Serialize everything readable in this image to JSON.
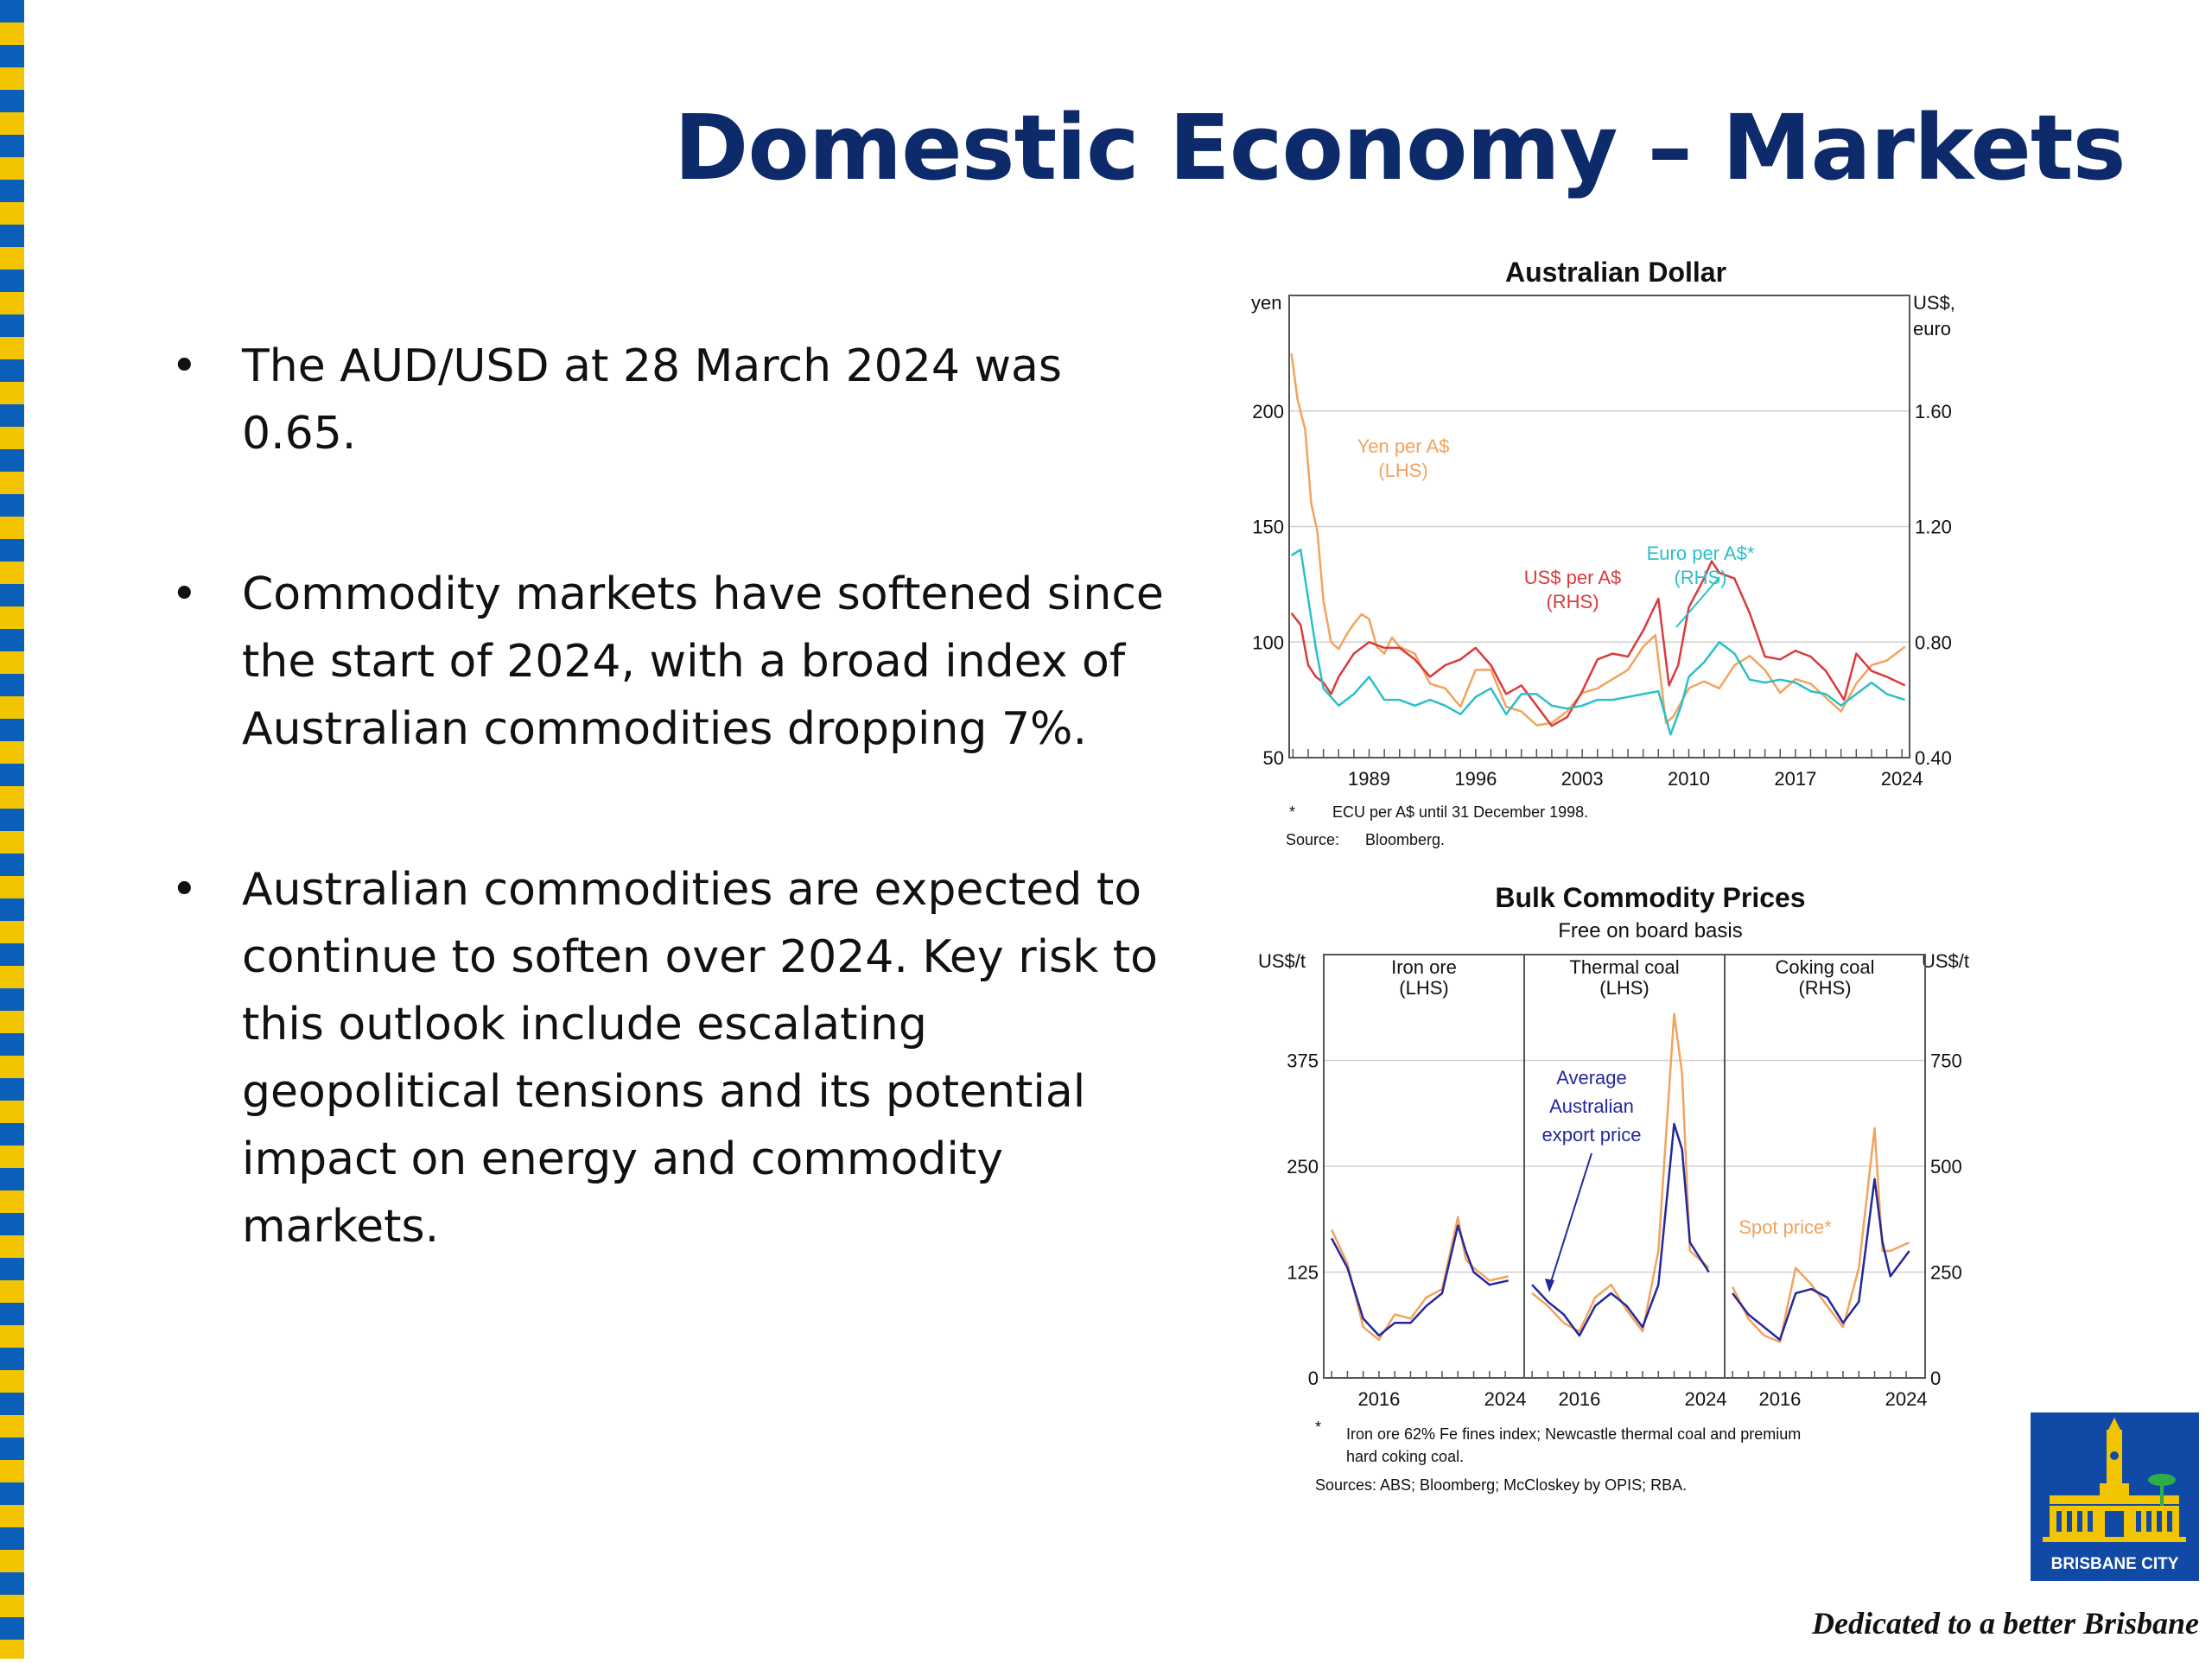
{
  "slide": {
    "title": "Domestic Economy – Markets",
    "bullets": [
      "The AUD/USD at 28 March 2024 was 0.65.",
      "Commodity markets have softened since the start of 2024, with a broad index of Australian commodities dropping 7%.",
      "Australian commodities are expected to continue to soften over 2024. Key risk to this outlook include escalating geopolitical tensions and its potential impact on energy and commodity markets."
    ],
    "logo_text": "BRISBANE CITY",
    "tagline": "Dedicated to a better Brisbane",
    "colors": {
      "title": "#0d2a6b",
      "stripe_blue": "#0b5fb8",
      "stripe_yellow": "#f2c500",
      "logo_blue": "#114aa6"
    }
  },
  "chart_data": [
    {
      "type": "line",
      "title": "Australian Dollar",
      "ylabel_left": "yen",
      "ylabel_right": "US$, euro",
      "ylim_left": [
        50,
        250
      ],
      "ylim_right": [
        0.4,
        2.0
      ],
      "left_ticks": [
        "50",
        "100",
        "150",
        "200"
      ],
      "right_ticks": [
        "0.40",
        "0.80",
        "1.20",
        "1.60"
      ],
      "x_ticks": [
        "1989",
        "1996",
        "2003",
        "2010",
        "2017",
        "2024"
      ],
      "series": [
        {
          "name": "Yen per A$",
          "axis_label": "(LHS)",
          "color": "#f2a35e",
          "points": [
            [
              1983.9,
              225
            ],
            [
              1984.3,
              205
            ],
            [
              1984.8,
              192
            ],
            [
              1985.2,
              160
            ],
            [
              1985.6,
              148
            ],
            [
              1986.0,
              118
            ],
            [
              1986.5,
              100
            ],
            [
              1987.0,
              97
            ],
            [
              1987.5,
              103
            ],
            [
              1988.0,
              108
            ],
            [
              1988.5,
              112
            ],
            [
              1989.0,
              110
            ],
            [
              1989.5,
              98
            ],
            [
              1990.0,
              95
            ],
            [
              1990.5,
              102
            ],
            [
              1991.0,
              98
            ],
            [
              1992.0,
              95
            ],
            [
              1993.0,
              82
            ],
            [
              1994.0,
              80
            ],
            [
              1995.0,
              72
            ],
            [
              1996.0,
              88
            ],
            [
              1997.0,
              88
            ],
            [
              1998.0,
              72
            ],
            [
              1999.0,
              70
            ],
            [
              2000.0,
              64
            ],
            [
              2001.0,
              65
            ],
            [
              2002.0,
              70
            ],
            [
              2003.0,
              78
            ],
            [
              2004.0,
              80
            ],
            [
              2005.0,
              84
            ],
            [
              2006.0,
              88
            ],
            [
              2007.0,
              98
            ],
            [
              2007.8,
              103
            ],
            [
              2008.5,
              65
            ],
            [
              2009.0,
              68
            ],
            [
              2010.0,
              80
            ],
            [
              2011.0,
              83
            ],
            [
              2012.0,
              80
            ],
            [
              2013.0,
              90
            ],
            [
              2014.0,
              94
            ],
            [
              2015.0,
              88
            ],
            [
              2016.0,
              78
            ],
            [
              2017.0,
              84
            ],
            [
              2018.0,
              82
            ],
            [
              2019.0,
              76
            ],
            [
              2020.0,
              70
            ],
            [
              2021.0,
              82
            ],
            [
              2022.0,
              90
            ],
            [
              2023.0,
              92
            ],
            [
              2024.2,
              98
            ]
          ]
        },
        {
          "name": "US$ per A$",
          "axis_label": "(RHS)",
          "color": "#d93b3b",
          "points": [
            [
              1983.9,
              0.9
            ],
            [
              1984.5,
              0.86
            ],
            [
              1985.0,
              0.72
            ],
            [
              1985.5,
              0.68
            ],
            [
              1986.0,
              0.66
            ],
            [
              1986.5,
              0.62
            ],
            [
              1987.0,
              0.68
            ],
            [
              1988.0,
              0.76
            ],
            [
              1989.0,
              0.8
            ],
            [
              1990.0,
              0.78
            ],
            [
              1991.0,
              0.78
            ],
            [
              1992.0,
              0.74
            ],
            [
              1993.0,
              0.68
            ],
            [
              1994.0,
              0.72
            ],
            [
              1995.0,
              0.74
            ],
            [
              1996.0,
              0.78
            ],
            [
              1997.0,
              0.72
            ],
            [
              1998.0,
              0.62
            ],
            [
              1999.0,
              0.65
            ],
            [
              2000.0,
              0.58
            ],
            [
              2001.0,
              0.51
            ],
            [
              2002.0,
              0.54
            ],
            [
              2003.0,
              0.63
            ],
            [
              2004.0,
              0.74
            ],
            [
              2005.0,
              0.76
            ],
            [
              2006.0,
              0.75
            ],
            [
              2007.0,
              0.84
            ],
            [
              2008.0,
              0.95
            ],
            [
              2008.7,
              0.65
            ],
            [
              2009.3,
              0.72
            ],
            [
              2010.0,
              0.92
            ],
            [
              2011.0,
              1.02
            ],
            [
              2011.5,
              1.08
            ],
            [
              2012.0,
              1.04
            ],
            [
              2013.0,
              1.02
            ],
            [
              2014.0,
              0.9
            ],
            [
              2015.0,
              0.75
            ],
            [
              2016.0,
              0.74
            ],
            [
              2017.0,
              0.77
            ],
            [
              2018.0,
              0.75
            ],
            [
              2019.0,
              0.7
            ],
            [
              2020.2,
              0.6
            ],
            [
              2021.0,
              0.76
            ],
            [
              2022.0,
              0.7
            ],
            [
              2023.0,
              0.68
            ],
            [
              2024.2,
              0.65
            ]
          ]
        },
        {
          "name": "Euro per A$*",
          "axis_label": "(RHS)",
          "color": "#2bbfc7",
          "points": [
            [
              1983.9,
              1.1
            ],
            [
              1984.5,
              1.12
            ],
            [
              1985.0,
              0.95
            ],
            [
              1985.5,
              0.78
            ],
            [
              1986.0,
              0.64
            ],
            [
              1987.0,
              0.58
            ],
            [
              1988.0,
              0.62
            ],
            [
              1989.0,
              0.68
            ],
            [
              1990.0,
              0.6
            ],
            [
              1991.0,
              0.6
            ],
            [
              1992.0,
              0.58
            ],
            [
              1993.0,
              0.6
            ],
            [
              1994.0,
              0.58
            ],
            [
              1995.0,
              0.55
            ],
            [
              1996.0,
              0.61
            ],
            [
              1997.0,
              0.64
            ],
            [
              1998.0,
              0.55
            ],
            [
              1999.0,
              0.62
            ],
            [
              2000.0,
              0.62
            ],
            [
              2001.0,
              0.58
            ],
            [
              2002.0,
              0.57
            ],
            [
              2003.0,
              0.58
            ],
            [
              2004.0,
              0.6
            ],
            [
              2005.0,
              0.6
            ],
            [
              2006.0,
              0.61
            ],
            [
              2007.0,
              0.62
            ],
            [
              2008.0,
              0.63
            ],
            [
              2008.8,
              0.48
            ],
            [
              2009.5,
              0.58
            ],
            [
              2010.0,
              0.68
            ],
            [
              2011.0,
              0.73
            ],
            [
              2012.0,
              0.8
            ],
            [
              2013.0,
              0.76
            ],
            [
              2014.0,
              0.67
            ],
            [
              2015.0,
              0.66
            ],
            [
              2016.0,
              0.67
            ],
            [
              2017.0,
              0.66
            ],
            [
              2018.0,
              0.63
            ],
            [
              2019.0,
              0.62
            ],
            [
              2020.0,
              0.58
            ],
            [
              2021.0,
              0.62
            ],
            [
              2022.0,
              0.66
            ],
            [
              2023.0,
              0.62
            ],
            [
              2024.2,
              0.6
            ]
          ]
        }
      ],
      "footnote": "ECU per A$ until 31 December 1998.",
      "footnote_marker": "*",
      "source": "Bloomberg.",
      "source_label": "Source:"
    },
    {
      "type": "line",
      "title": "Bulk Commodity Prices",
      "subtitle": "Free on board basis",
      "ylabel_left": "US$/t",
      "ylabel_right": "US$/t",
      "ylim_left": [
        0,
        500
      ],
      "ylim_right": [
        0,
        1000
      ],
      "left_ticks": [
        "0",
        "125",
        "250",
        "375"
      ],
      "right_ticks": [
        "0",
        "250",
        "500",
        "750"
      ],
      "x_ticks": [
        "2016",
        "2024"
      ],
      "series_names": [
        "Average Australian export price",
        "Spot price*"
      ],
      "panels": [
        {
          "name": "Iron ore",
          "axis": "(LHS)",
          "export_price": [
            [
              2013,
              165
            ],
            [
              2014,
              130
            ],
            [
              2015,
              70
            ],
            [
              2016,
              50
            ],
            [
              2017,
              65
            ],
            [
              2018,
              65
            ],
            [
              2019,
              85
            ],
            [
              2020,
              100
            ],
            [
              2021,
              180
            ],
            [
              2021.5,
              150
            ],
            [
              2022,
              125
            ],
            [
              2023,
              110
            ],
            [
              2024.2,
              115
            ]
          ],
          "spot_price": [
            [
              2013,
              175
            ],
            [
              2014,
              135
            ],
            [
              2015,
              60
            ],
            [
              2016,
              45
            ],
            [
              2017,
              75
            ],
            [
              2018,
              70
            ],
            [
              2019,
              95
            ],
            [
              2020,
              105
            ],
            [
              2021,
              190
            ],
            [
              2021.5,
              140
            ],
            [
              2022,
              130
            ],
            [
              2023,
              115
            ],
            [
              2024.2,
              120
            ]
          ]
        },
        {
          "name": "Thermal coal",
          "axis": "(LHS)",
          "export_price": [
            [
              2013,
              110
            ],
            [
              2014,
              90
            ],
            [
              2015,
              75
            ],
            [
              2016,
              50
            ],
            [
              2017,
              85
            ],
            [
              2018,
              100
            ],
            [
              2019,
              85
            ],
            [
              2020,
              60
            ],
            [
              2021,
              110
            ],
            [
              2022,
              300
            ],
            [
              2022.5,
              270
            ],
            [
              2023,
              160
            ],
            [
              2024.2,
              125
            ]
          ],
          "spot_price": [
            [
              2013,
              100
            ],
            [
              2014,
              85
            ],
            [
              2015,
              65
            ],
            [
              2016,
              55
            ],
            [
              2017,
              95
            ],
            [
              2018,
              110
            ],
            [
              2019,
              80
            ],
            [
              2020,
              55
            ],
            [
              2021,
              150
            ],
            [
              2022,
              430
            ],
            [
              2022.5,
              360
            ],
            [
              2023,
              150
            ],
            [
              2024.2,
              130
            ]
          ]
        },
        {
          "name": "Coking coal",
          "axis": "(RHS)",
          "export_price": [
            [
              2013,
              200
            ],
            [
              2014,
              150
            ],
            [
              2015,
              120
            ],
            [
              2016,
              90
            ],
            [
              2017,
              200
            ],
            [
              2018,
              210
            ],
            [
              2019,
              190
            ],
            [
              2020,
              130
            ],
            [
              2021,
              180
            ],
            [
              2022,
              470
            ],
            [
              2022.5,
              320
            ],
            [
              2023,
              240
            ],
            [
              2024.2,
              300
            ]
          ],
          "spot_price": [
            [
              2013,
              215
            ],
            [
              2014,
              140
            ],
            [
              2015,
              100
            ],
            [
              2016,
              85
            ],
            [
              2017,
              260
            ],
            [
              2018,
              220
            ],
            [
              2019,
              170
            ],
            [
              2020,
              120
            ],
            [
              2021,
              260
            ],
            [
              2022,
              590
            ],
            [
              2022.5,
              300
            ],
            [
              2023,
              300
            ],
            [
              2024.2,
              320
            ]
          ]
        }
      ],
      "footnote": "Iron ore 62% Fe fines index; Newcastle thermal coal and premium hard coking coal.",
      "footnote_marker": "*",
      "source": "Sources: ABS; Bloomberg; McCloskey by OPIS; RBA.",
      "colors": {
        "export": "#23289b",
        "spot": "#f2a35e"
      }
    }
  ]
}
